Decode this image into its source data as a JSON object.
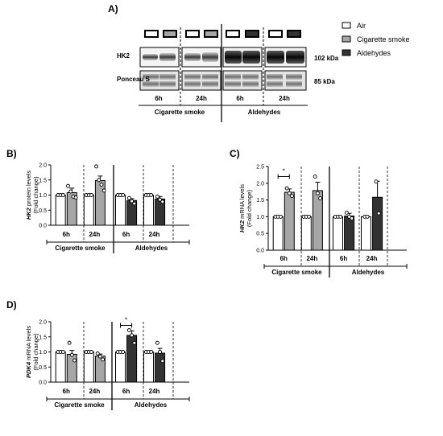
{
  "colors": {
    "air": "#ffffff",
    "cs": "#a6a6a6",
    "ald": "#333333",
    "stroke": "#000000"
  },
  "legend": {
    "items": [
      {
        "label": "Air",
        "color": "#ffffff"
      },
      {
        "label": "Cigarette smoke",
        "color": "#a6a6a6"
      },
      {
        "label": "Aldehydes",
        "color": "#333333"
      }
    ]
  },
  "blot": {
    "panel_label": "A)",
    "row_labels": [
      "HK2",
      "Ponceau S"
    ],
    "kda_labels": [
      "102 kDa",
      "85 kDa"
    ],
    "time_labels": [
      "6h",
      "24h",
      "6h",
      "24h"
    ],
    "group_labels": [
      "Cigarette smoke",
      "Aldehydes"
    ]
  },
  "chart_data": [
    {
      "id": "B",
      "panel_label": "B)",
      "type": "bar",
      "ylabel_lines": [
        [
          {
            "t": "HK2",
            "i": true
          },
          {
            "t": " protein levels",
            "i": false
          }
        ],
        [
          {
            "t": "(Fold change)",
            "i": false
          }
        ]
      ],
      "ylim": [
        0,
        2.0
      ],
      "yticks": [
        "0.0",
        "0.5",
        "1.0",
        "1.5",
        "2.0"
      ],
      "time_labels": [
        "6h",
        "24h",
        "6h",
        "24h"
      ],
      "group_labels": [
        "Cigarette smoke",
        "Aldehydes"
      ],
      "significance": [],
      "bars": [
        {
          "group": "air",
          "value": 1.0,
          "err": 0.02,
          "points": [
            1.0,
            1.0,
            1.0
          ]
        },
        {
          "group": "cs",
          "value": 1.08,
          "err": 0.15,
          "points": [
            1.3,
            1.12,
            0.95,
            0.92
          ]
        },
        {
          "group": "air",
          "value": 1.0,
          "err": 0.02,
          "points": [
            1.0,
            1.0,
            1.0
          ]
        },
        {
          "group": "cs",
          "value": 1.48,
          "err": 0.15,
          "points": [
            1.95,
            1.5,
            1.35,
            1.15
          ]
        },
        {
          "group": "air",
          "value": 1.0,
          "err": 0.02,
          "points": [
            1.0,
            1.0,
            1.0
          ]
        },
        {
          "group": "ald",
          "value": 0.82,
          "err": 0.06,
          "points": [
            0.9,
            0.8,
            0.72
          ]
        },
        {
          "group": "air",
          "value": 1.0,
          "err": 0.02,
          "points": [
            1.0,
            1.0,
            1.0
          ]
        },
        {
          "group": "ald",
          "value": 0.87,
          "err": 0.08,
          "points": [
            0.95,
            0.85,
            0.78
          ]
        }
      ]
    },
    {
      "id": "C",
      "panel_label": "C)",
      "type": "bar",
      "ylabel_lines": [
        [
          {
            "t": "HK2",
            "i": true
          },
          {
            "t": " mRNA levels",
            "i": false
          }
        ],
        [
          {
            "t": "(Fold change)",
            "i": false
          }
        ]
      ],
      "ylim": [
        0,
        2.5
      ],
      "yticks": [
        "0.0",
        "0.5",
        "1.0",
        "1.5",
        "2.0",
        "2.5"
      ],
      "time_labels": [
        "6h",
        "24h",
        "6h",
        "24h"
      ],
      "group_labels": [
        "Cigarette smoke",
        "Aldehydes"
      ],
      "significance": [
        {
          "from": 0,
          "to": 1,
          "y": 2.2,
          "label": "*"
        }
      ],
      "bars": [
        {
          "group": "air",
          "value": 1.0,
          "err": 0.02,
          "points": [
            1.0,
            1.0,
            1.0
          ]
        },
        {
          "group": "cs",
          "value": 1.73,
          "err": 0.1,
          "points": [
            1.85,
            1.7,
            1.62
          ]
        },
        {
          "group": "air",
          "value": 1.0,
          "err": 0.02,
          "points": [
            1.0,
            1.0,
            1.0
          ]
        },
        {
          "group": "cs",
          "value": 1.78,
          "err": 0.25,
          "points": [
            2.2,
            1.7,
            1.55
          ]
        },
        {
          "group": "air",
          "value": 1.0,
          "err": 0.02,
          "points": [
            1.0,
            1.0,
            1.0
          ]
        },
        {
          "group": "ald",
          "value": 1.02,
          "err": 0.08,
          "points": [
            1.12,
            1.0,
            0.95
          ]
        },
        {
          "group": "air",
          "value": 1.0,
          "err": 0.02,
          "points": [
            1.0,
            1.0
          ]
        },
        {
          "group": "ald",
          "value": 1.58,
          "err": 0.48,
          "points": [
            2.05,
            1.1
          ]
        }
      ]
    },
    {
      "id": "D",
      "panel_label": "D)",
      "type": "bar",
      "ylabel_lines": [
        [
          {
            "t": "PDK4",
            "i": true
          },
          {
            "t": " mRNA levels",
            "i": false
          }
        ],
        [
          {
            "t": "(Fold change)",
            "i": false
          }
        ]
      ],
      "ylim": [
        0,
        2.0
      ],
      "yticks": [
        "0.0",
        "0.5",
        "1.0",
        "1.5",
        "2.0"
      ],
      "time_labels": [
        "6h",
        "24h",
        "6h",
        "24h"
      ],
      "group_labels": [
        "Cigarette smoke",
        "Aldehydes"
      ],
      "significance": [
        {
          "from": 4,
          "to": 5,
          "y": 1.88,
          "label": "*"
        }
      ],
      "bars": [
        {
          "group": "air",
          "value": 1.0,
          "err": 0.02,
          "points": [
            1.0,
            1.0,
            1.0
          ]
        },
        {
          "group": "cs",
          "value": 0.92,
          "err": 0.13,
          "points": [
            1.3,
            0.9,
            0.72
          ]
        },
        {
          "group": "air",
          "value": 1.0,
          "err": 0.02,
          "points": [
            1.0,
            1.0,
            1.0
          ]
        },
        {
          "group": "cs",
          "value": 0.86,
          "err": 0.07,
          "points": [
            0.95,
            0.85,
            0.75
          ]
        },
        {
          "group": "air",
          "value": 1.0,
          "err": 0.02,
          "points": [
            1.0,
            1.0,
            1.0
          ]
        },
        {
          "group": "ald",
          "value": 1.55,
          "err": 0.15,
          "points": [
            1.72,
            1.55,
            1.3
          ]
        },
        {
          "group": "air",
          "value": 1.0,
          "err": 0.02,
          "points": [
            1.0,
            1.0,
            1.0
          ]
        },
        {
          "group": "ald",
          "value": 0.96,
          "err": 0.16,
          "points": [
            1.3,
            1.0,
            0.7
          ]
        }
      ]
    }
  ]
}
